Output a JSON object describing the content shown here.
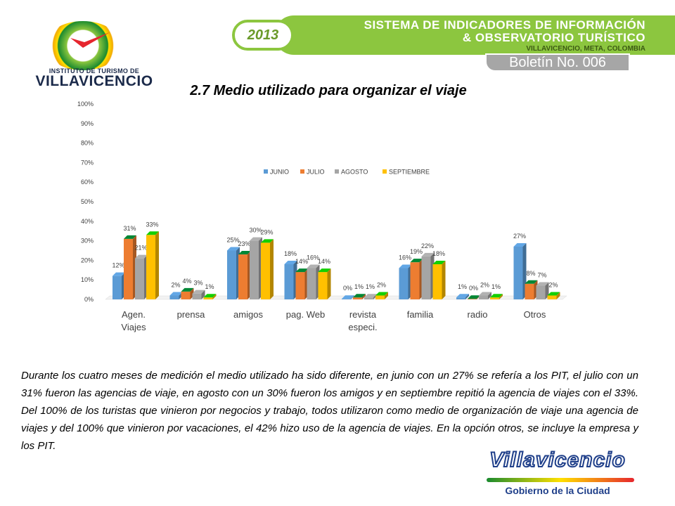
{
  "header": {
    "year": "2013",
    "line1": "SISTEMA DE INDICADORES DE INFORMACIÓN",
    "line2": "& OBSERVATORIO TURÍSTICO",
    "line3": "VILLAVICENCIO, META, COLOMBIA",
    "boletin": "Boletín No. 006"
  },
  "logo_left": {
    "line1": "INSTITUTO DE TURISMO DE",
    "line2": "VILLAVICENCIO"
  },
  "logo_right": {
    "word": "Villavicencio",
    "sub": "Gobierno de la Ciudad"
  },
  "colors": {
    "junio": "#5b9bd5",
    "julio": "#ed7d31",
    "agosto": "#a5a5a5",
    "septiembre": "#ffc000",
    "banner": "#8cc63f"
  },
  "title": "2.7 Medio utilizado para organizar el viaje",
  "chart_data": {
    "type": "bar",
    "categories": [
      [
        "Agen.",
        "Viajes"
      ],
      [
        "prensa"
      ],
      [
        "amigos"
      ],
      [
        "pag. Web"
      ],
      [
        "revista",
        "especi."
      ],
      [
        "familia"
      ],
      [
        "radio"
      ],
      [
        "Otros"
      ]
    ],
    "series": [
      {
        "name": "JUNIO",
        "values": [
          12,
          2,
          25,
          18,
          0,
          16,
          1,
          27
        ],
        "labels": [
          "12%",
          "2%",
          "25%",
          "18%",
          "0%",
          "16%",
          "1%",
          "27%"
        ]
      },
      {
        "name": "JULIO",
        "values": [
          31,
          4,
          23,
          14,
          1,
          19,
          0,
          8
        ],
        "labels": [
          "31%",
          "4%",
          "23%",
          "14%",
          "1%",
          "19%",
          "0%",
          "8%"
        ]
      },
      {
        "name": "AGOSTO",
        "values": [
          21,
          3,
          30,
          16,
          1,
          22,
          2,
          7
        ],
        "labels": [
          "21%",
          "3%",
          "30%",
          "16%",
          "1%",
          "22%",
          "2%",
          "7%"
        ]
      },
      {
        "name": "SEPTIEMBRE",
        "values": [
          33,
          1,
          29,
          14,
          2,
          18,
          1,
          2
        ],
        "labels": [
          "33%",
          "1%",
          "29%",
          "14%",
          "2%",
          "18%",
          "1%",
          "2%"
        ]
      }
    ],
    "yticks": [
      "0%",
      "10%",
      "20%",
      "30%",
      "40%",
      "50%",
      "60%",
      "70%",
      "80%",
      "90%",
      "100%"
    ],
    "ylim": [
      0,
      100
    ],
    "grid": false,
    "legend": "center"
  },
  "paragraph": "Durante los cuatro meses de medición el medio utilizado ha sido diferente, en junio con un 27% se refería a los PIT, el julio con un 31% fueron las agencias de viaje, en agosto con un 30% fueron los amigos y en septiembre repitió la agencia de viajes con el 33%. Del 100% de los turistas que vinieron por negocios y trabajo, todos utilizaron como medio de organización de viaje una agencia de viajes y del 100% que vinieron por vacaciones, el 42% hizo uso de la agencia de viajes. En la opción otros, se incluye la empresa y los PIT."
}
